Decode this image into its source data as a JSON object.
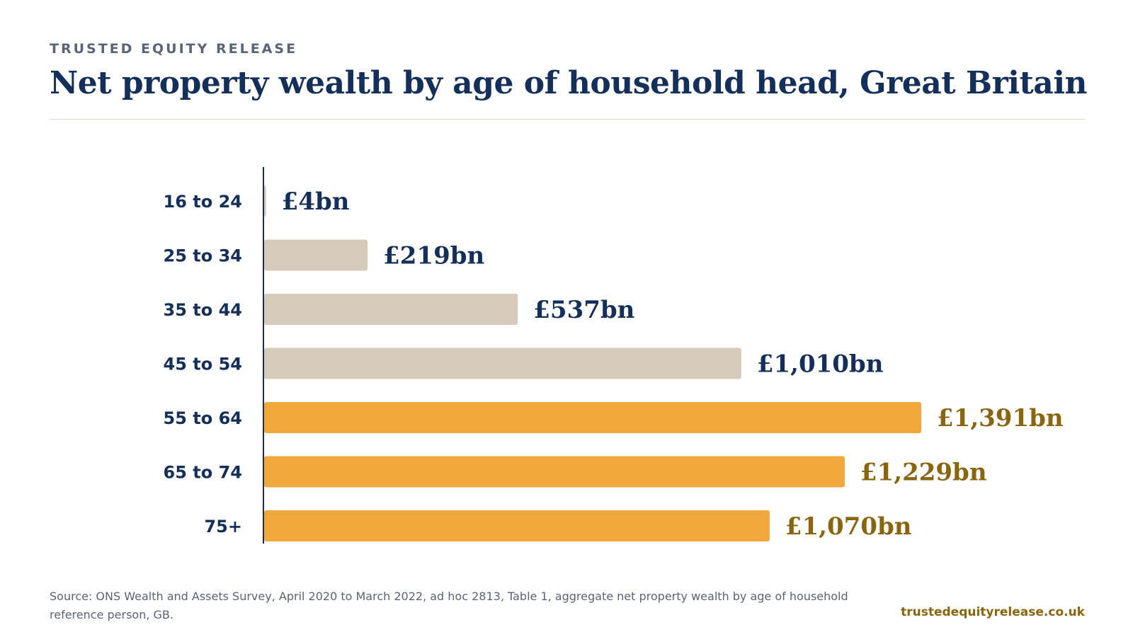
{
  "header": {
    "brand": "TRUSTED EQUITY RELEASE",
    "title": "Net property wealth by age of household head, Great Britain"
  },
  "chart_data": {
    "type": "bar",
    "orientation": "horizontal",
    "categories": [
      "16 to 24",
      "25 to 34",
      "35 to 44",
      "45 to 54",
      "55 to 64",
      "65 to 74",
      "75+"
    ],
    "values": [
      4,
      219,
      537,
      1010,
      1391,
      1229,
      1070
    ],
    "value_labels": [
      "£4bn",
      "£219bn",
      "£537bn",
      "£1,010bn",
      "£1,391bn",
      "£1,229bn",
      "£1,070bn"
    ],
    "unit": "£bn",
    "highlighted": [
      false,
      false,
      false,
      false,
      true,
      true,
      true
    ],
    "xlim": [
      0,
      1391
    ],
    "grid": false,
    "colors": {
      "bar_default": "#d6cbba",
      "bar_highlight": "#f0a73c",
      "label_default": "#14305a",
      "label_highlight": "#8a6510",
      "axis": "#14305a"
    }
  },
  "footer": {
    "source": "Source: ONS Wealth and Assets Survey, April 2020 to March 2022, ad hoc 2813, Table 1, aggregate net property wealth by age of household reference person, GB.",
    "site": "trustedequityrelease.co.uk"
  }
}
